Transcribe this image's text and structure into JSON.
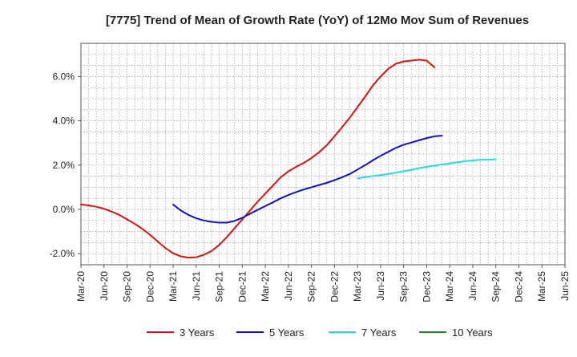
{
  "chart_data": {
    "type": "line",
    "title": "[7775]  Trend of Mean of Growth Rate (YoY) of 12Mo Mov Sum of Revenues",
    "xlabel": "",
    "ylabel": "",
    "x_ticks": [
      "Mar-20",
      "Jun-20",
      "Sep-20",
      "Dec-20",
      "Mar-21",
      "Jun-21",
      "Sep-21",
      "Dec-21",
      "Mar-22",
      "Jun-22",
      "Sep-22",
      "Dec-22",
      "Mar-23",
      "Jun-23",
      "Sep-23",
      "Dec-23",
      "Mar-24",
      "Jun-24",
      "Sep-24",
      "Dec-24",
      "Mar-25",
      "Jun-25"
    ],
    "y_ticks": [
      -2.0,
      0.0,
      2.0,
      4.0,
      6.0
    ],
    "y_tick_labels": [
      "-2.0%",
      "0.0%",
      "2.0%",
      "4.0%",
      "6.0%"
    ],
    "ylim": [
      -2.5,
      7.5
    ],
    "grid": true,
    "legend_position": "bottom",
    "series": [
      {
        "name": "3 Years",
        "color": "#dd1111",
        "start": "Mar-20",
        "values": [
          0.22,
          0.18,
          0.12,
          0.03,
          -0.1,
          -0.25,
          -0.45,
          -0.65,
          -0.88,
          -1.15,
          -1.45,
          -1.75,
          -1.98,
          -2.12,
          -2.18,
          -2.16,
          -2.05,
          -1.88,
          -1.6,
          -1.25,
          -0.85,
          -0.45,
          -0.05,
          0.35,
          0.72,
          1.08,
          1.45,
          1.72,
          1.92,
          2.1,
          2.32,
          2.58,
          2.9,
          3.3,
          3.72,
          4.15,
          4.62,
          5.1,
          5.6,
          6.0,
          6.35,
          6.58,
          6.68,
          6.72,
          6.76,
          6.72,
          6.42
        ]
      },
      {
        "name": "5 Years",
        "color": "#1111cc",
        "start": "Mar-21",
        "values": [
          0.22,
          -0.05,
          -0.25,
          -0.4,
          -0.5,
          -0.56,
          -0.6,
          -0.6,
          -0.52,
          -0.38,
          -0.2,
          -0.02,
          0.15,
          0.32,
          0.5,
          0.65,
          0.78,
          0.9,
          1.0,
          1.1,
          1.2,
          1.32,
          1.45,
          1.6,
          1.8,
          2.0,
          2.22,
          2.42,
          2.6,
          2.78,
          2.92,
          3.02,
          3.12,
          3.22,
          3.3,
          3.33
        ]
      },
      {
        "name": "7 Years",
        "color": "#22dddd",
        "start": "Mar-23",
        "values": [
          1.4,
          1.46,
          1.51,
          1.55,
          1.6,
          1.66,
          1.72,
          1.79,
          1.86,
          1.92,
          1.98,
          2.03,
          2.08,
          2.13,
          2.18,
          2.21,
          2.24,
          2.25,
          2.26
        ]
      },
      {
        "name": "10 Years",
        "color": "#228822",
        "start": "Mar-25",
        "values": []
      }
    ]
  }
}
